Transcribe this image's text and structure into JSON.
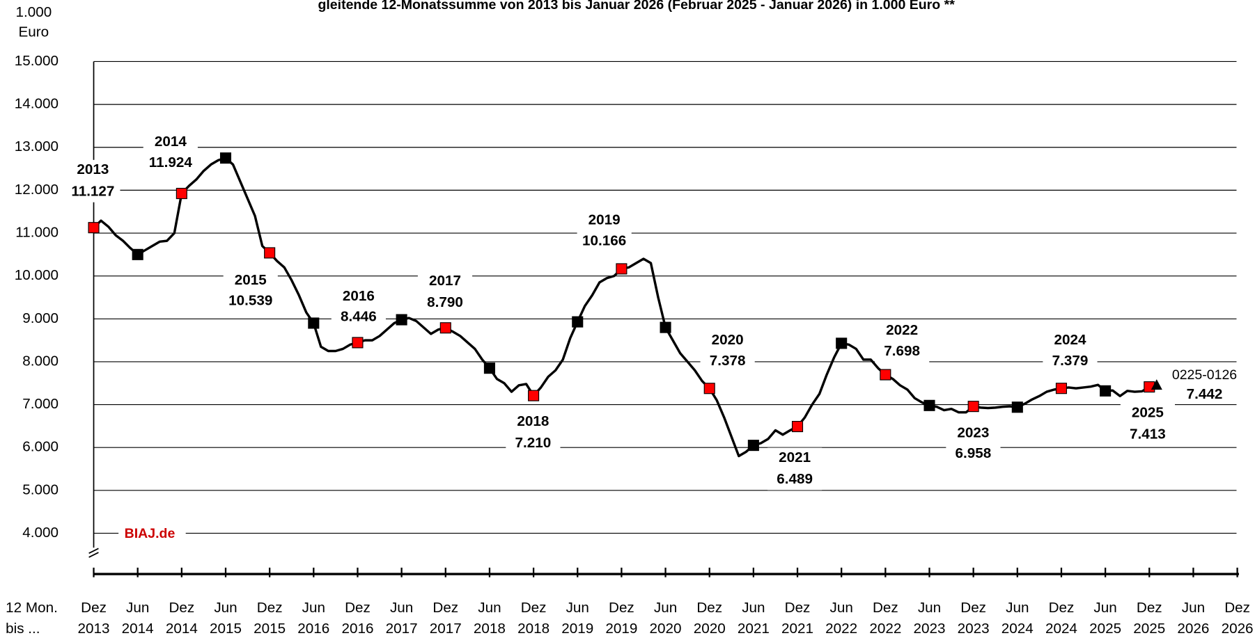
{
  "chart_data": {
    "type": "line",
    "title": "gleitende 12-Monatssumme von 2013 bis Januar 2026 (Februar 2025 - Januar 2026) in 1.000 Euro **",
    "y_unit": [
      "1.000",
      "Euro"
    ],
    "x_axis_label": [
      "12 Mon.",
      "bis ..."
    ],
    "source": "BIAJ.de",
    "ylim": [
      4000,
      15000
    ],
    "yticks": [
      {
        "value": 4000,
        "label": "4.000"
      },
      {
        "value": 5000,
        "label": "5.000"
      },
      {
        "value": 6000,
        "label": "6.000"
      },
      {
        "value": 7000,
        "label": "7.000"
      },
      {
        "value": 8000,
        "label": "8.000"
      },
      {
        "value": 9000,
        "label": "9.000"
      },
      {
        "value": 10000,
        "label": "10.000"
      },
      {
        "value": 11000,
        "label": "11.000"
      },
      {
        "value": 12000,
        "label": "12.000"
      },
      {
        "value": 13000,
        "label": "13.000"
      },
      {
        "value": 14000,
        "label": "14.000"
      },
      {
        "value": 15000,
        "label": "15.000"
      }
    ],
    "grid": true,
    "categories": [
      [
        "Dez",
        "2013"
      ],
      [
        "Jun",
        "2014"
      ],
      [
        "Dez",
        "2014"
      ],
      [
        "Jun",
        "2015"
      ],
      [
        "Dez",
        "2015"
      ],
      [
        "Jun",
        "2016"
      ],
      [
        "Dez",
        "2016"
      ],
      [
        "Jun",
        "2017"
      ],
      [
        "Dez",
        "2017"
      ],
      [
        "Jun",
        "2018"
      ],
      [
        "Dez",
        "2018"
      ],
      [
        "Jun",
        "2019"
      ],
      [
        "Dez",
        "2019"
      ],
      [
        "Jun",
        "2020"
      ],
      [
        "Dez",
        "2020"
      ],
      [
        "Jun",
        "2021"
      ],
      [
        "Dez",
        "2021"
      ],
      [
        "Jun",
        "2022"
      ],
      [
        "Dez",
        "2022"
      ],
      [
        "Jun",
        "2023"
      ],
      [
        "Dez",
        "2023"
      ],
      [
        "Jun",
        "2024"
      ],
      [
        "Dez",
        "2024"
      ],
      [
        "Jun",
        "2025"
      ],
      [
        "Dez",
        "2025"
      ],
      [
        "Jun",
        "2026"
      ],
      [
        "Dez",
        "2026"
      ]
    ],
    "x": [
      "2013-12",
      "2014-01",
      "2014-02",
      "2014-03",
      "2014-04",
      "2014-05",
      "2014-06",
      "2014-07",
      "2014-08",
      "2014-09",
      "2014-10",
      "2014-11",
      "2014-12",
      "2015-01",
      "2015-02",
      "2015-03",
      "2015-04",
      "2015-05",
      "2015-06",
      "2015-07",
      "2015-08",
      "2015-09",
      "2015-10",
      "2015-11",
      "2015-12",
      "2016-01",
      "2016-02",
      "2016-03",
      "2016-04",
      "2016-05",
      "2016-06",
      "2016-07",
      "2016-08",
      "2016-09",
      "2016-10",
      "2016-11",
      "2016-12",
      "2017-01",
      "2017-02",
      "2017-03",
      "2017-04",
      "2017-05",
      "2017-06",
      "2017-07",
      "2017-08",
      "2017-09",
      "2017-10",
      "2017-11",
      "2017-12",
      "2018-01",
      "2018-02",
      "2018-03",
      "2018-04",
      "2018-05",
      "2018-06",
      "2018-07",
      "2018-08",
      "2018-09",
      "2018-10",
      "2018-11",
      "2018-12",
      "2019-01",
      "2019-02",
      "2019-03",
      "2019-04",
      "2019-05",
      "2019-06",
      "2019-07",
      "2019-08",
      "2019-09",
      "2019-10",
      "2019-11",
      "2019-12",
      "2020-01",
      "2020-02",
      "2020-03",
      "2020-04",
      "2020-05",
      "2020-06",
      "2020-07",
      "2020-08",
      "2020-09",
      "2020-10",
      "2020-11",
      "2020-12",
      "2021-01",
      "2021-02",
      "2021-03",
      "2021-04",
      "2021-05",
      "2021-06",
      "2021-07",
      "2021-08",
      "2021-09",
      "2021-10",
      "2021-11",
      "2021-12",
      "2022-01",
      "2022-02",
      "2022-03",
      "2022-04",
      "2022-05",
      "2022-06",
      "2022-07",
      "2022-08",
      "2022-09",
      "2022-10",
      "2022-11",
      "2022-12",
      "2023-01",
      "2023-02",
      "2023-03",
      "2023-04",
      "2023-05",
      "2023-06",
      "2023-07",
      "2023-08",
      "2023-09",
      "2023-10",
      "2023-11",
      "2023-12",
      "2024-01",
      "2024-02",
      "2024-03",
      "2024-04",
      "2024-05",
      "2024-06",
      "2024-07",
      "2024-08",
      "2024-09",
      "2024-10",
      "2024-11",
      "2024-12",
      "2025-01",
      "2025-02",
      "2025-03",
      "2025-04",
      "2025-05",
      "2025-06",
      "2025-07",
      "2025-08",
      "2025-09",
      "2025-10",
      "2025-11",
      "2025-12",
      "2026-01"
    ],
    "series": [
      {
        "color": "#000000",
        "values": [
          11127,
          11290,
          11150,
          10950,
          10820,
          10650,
          10500,
          10600,
          10700,
          10800,
          10820,
          11000,
          11924,
          12100,
          12250,
          12450,
          12600,
          12700,
          12750,
          12600,
          12200,
          11800,
          11400,
          10700,
          10539,
          10350,
          10200,
          9900,
          9550,
          9150,
          8900,
          8350,
          8250,
          8250,
          8300,
          8400,
          8446,
          8500,
          8500,
          8600,
          8750,
          8900,
          8980,
          9020,
          8950,
          8800,
          8650,
          8750,
          8790,
          8700,
          8600,
          8450,
          8300,
          8050,
          7850,
          7600,
          7500,
          7300,
          7450,
          7480,
          7210,
          7400,
          7650,
          7800,
          8050,
          8550,
          8930,
          9300,
          9550,
          9850,
          9950,
          10000,
          10166,
          10200,
          10300,
          10400,
          10300,
          9500,
          8800,
          8500,
          8200,
          8000,
          7800,
          7550,
          7378,
          7100,
          6700,
          6250,
          5800,
          5900,
          6050,
          6100,
          6200,
          6400,
          6300,
          6400,
          6489,
          6700,
          7000,
          7250,
          7700,
          8100,
          8430,
          8400,
          8300,
          8050,
          8050,
          7850,
          7698,
          7600,
          7450,
          7350,
          7150,
          7050,
          6980,
          6950,
          6870,
          6900,
          6820,
          6820,
          6958,
          6930,
          6920,
          6930,
          6950,
          6960,
          6940,
          7020,
          7120,
          7200,
          7300,
          7350,
          7379,
          7400,
          7380,
          7400,
          7420,
          7460,
          7320,
          7330,
          7200,
          7320,
          7300,
          7310,
          7413,
          7442
        ]
      }
    ],
    "marker_months": [
      {
        "month": 12,
        "color": "#ff0000"
      },
      {
        "month": 6,
        "color": "#000000"
      }
    ],
    "last_marker": "triangle",
    "annotations": [
      {
        "x": "2013-12",
        "label": "2013",
        "text": "11.127"
      },
      {
        "x": "2014-12",
        "label": "2014",
        "text": "11.924"
      },
      {
        "x": "2015-12",
        "label": "2015",
        "text": "10.539"
      },
      {
        "x": "2016-12",
        "label": "2016",
        "text": "8.446"
      },
      {
        "x": "2017-12",
        "label": "2017",
        "text": "8.790"
      },
      {
        "x": "2018-12",
        "label": "2018",
        "text": "7.210"
      },
      {
        "x": "2019-12",
        "label": "2019",
        "text": "10.166"
      },
      {
        "x": "2020-12",
        "label": "2020",
        "text": "7.378"
      },
      {
        "x": "2021-12",
        "label": "2021",
        "text": "6.489"
      },
      {
        "x": "2022-12",
        "label": "2022",
        "text": "7.698"
      },
      {
        "x": "2023-12",
        "label": "2023",
        "text": "6.958"
      },
      {
        "x": "2024-12",
        "label": "2024",
        "text": "7.379"
      },
      {
        "x": "2025-12",
        "label": "2025",
        "text": "7.413"
      },
      {
        "x": "2026-01",
        "label": "0225-0126",
        "text": "7.442"
      }
    ]
  }
}
